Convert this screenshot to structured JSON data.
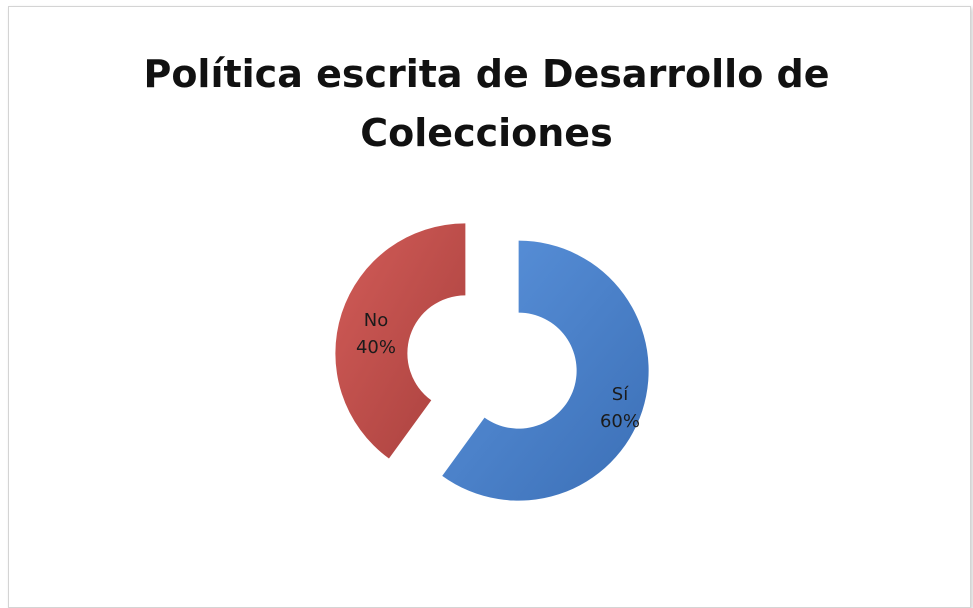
{
  "chart_data": {
    "type": "pie",
    "variant": "exploded-doughnut",
    "title_lines": [
      "Política escrita de Desarrollo de",
      "Colecciones"
    ],
    "slices": [
      {
        "category": "Sí",
        "value": 60,
        "label": "60%",
        "color": "#4a7ec8"
      },
      {
        "category": "No",
        "value": 40,
        "label": "40%",
        "color": "#c0504d"
      }
    ],
    "legend": "none",
    "data_labels": "inside"
  }
}
